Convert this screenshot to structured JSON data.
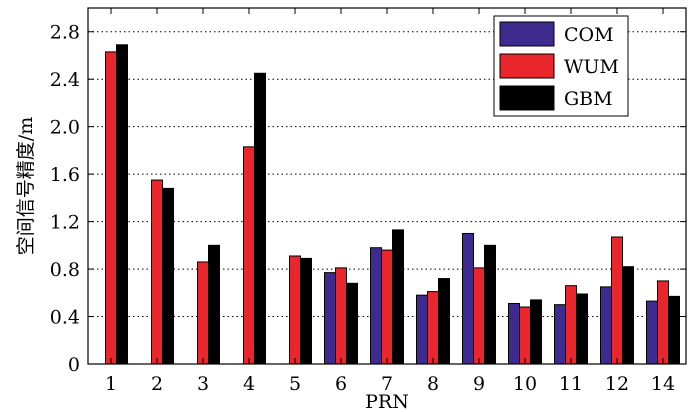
{
  "chart_data": {
    "type": "bar",
    "xlabel": "PRN",
    "ylabel": "空间信号精度/m",
    "ylim": [
      0,
      3.0
    ],
    "yticks": [
      0,
      0.4,
      0.8,
      1.2,
      1.6,
      2.0,
      2.4,
      2.8
    ],
    "ytick_labels": [
      "0",
      "0.4",
      "0.8",
      "1.2",
      "1.6",
      "2.0",
      "2.4",
      "2.8"
    ],
    "grid": "horizontal dotted",
    "legend_position": "top-right",
    "categories": [
      "1",
      "2",
      "3",
      "4",
      "5",
      "6",
      "7",
      "8",
      "9",
      "10",
      "11",
      "12",
      "14"
    ],
    "series": [
      {
        "name": "COM",
        "color": "#3d2b8f",
        "values": [
          null,
          null,
          null,
          null,
          null,
          0.77,
          0.98,
          0.58,
          1.1,
          0.51,
          0.5,
          0.65,
          0.53
        ]
      },
      {
        "name": "WUM",
        "color": "#e8262b",
        "values": [
          2.63,
          1.55,
          0.86,
          1.83,
          0.91,
          0.81,
          0.96,
          0.61,
          0.81,
          0.48,
          0.66,
          1.07,
          0.7
        ]
      },
      {
        "name": "GBM",
        "color": "#000000",
        "values": [
          2.69,
          1.48,
          1.0,
          2.45,
          0.89,
          0.68,
          1.13,
          0.72,
          1.0,
          0.54,
          0.59,
          0.82,
          0.57
        ]
      }
    ]
  }
}
